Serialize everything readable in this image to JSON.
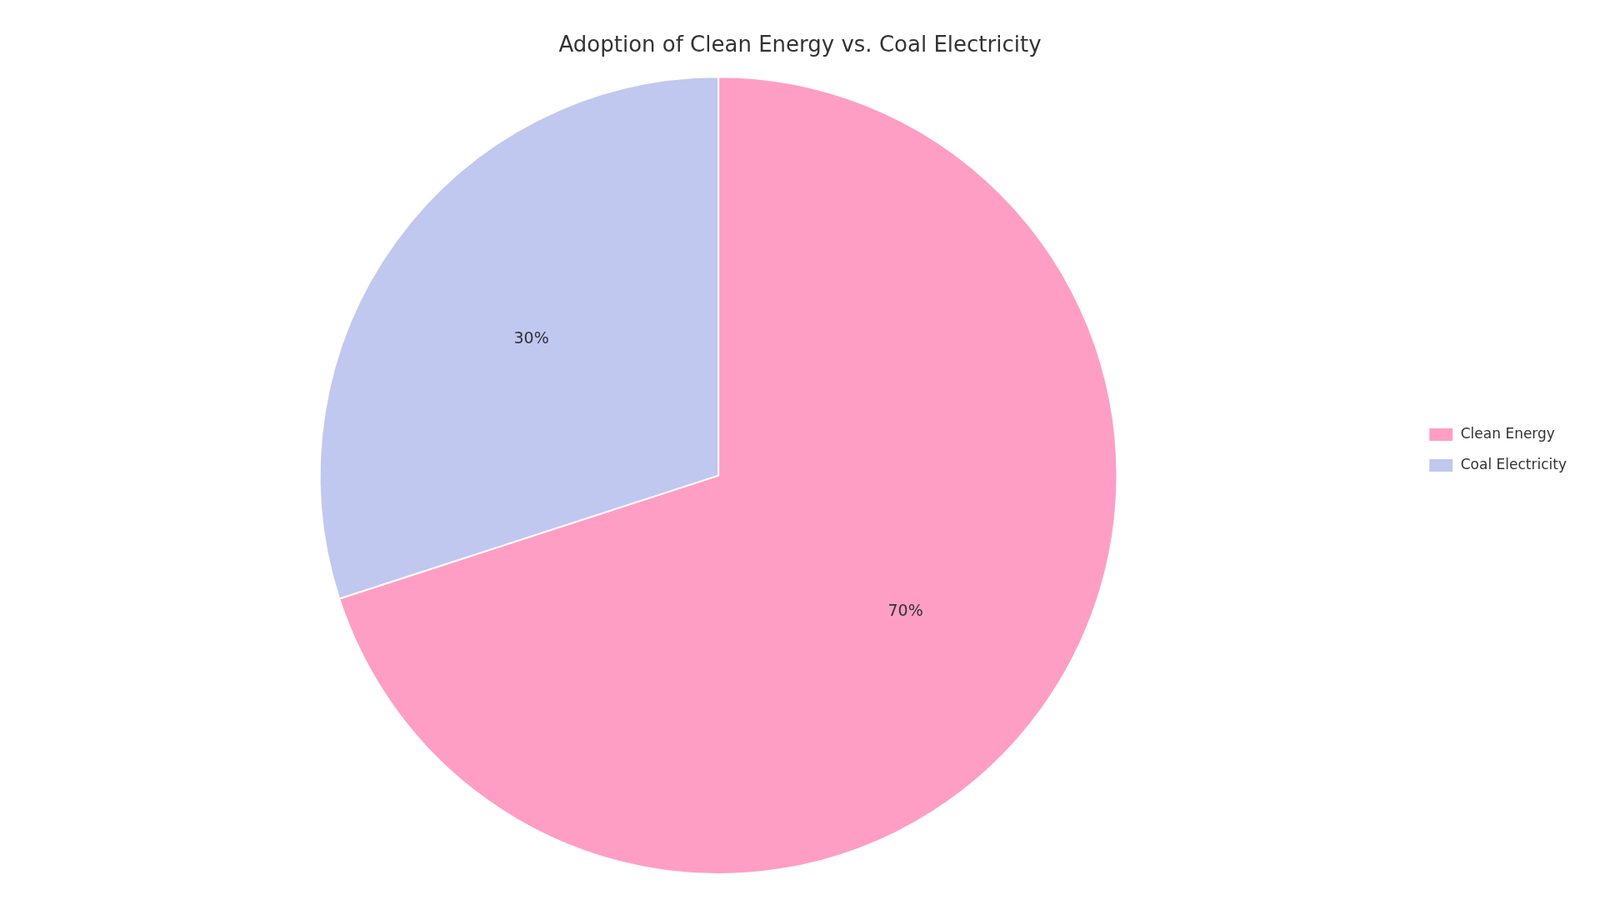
{
  "chart_data": {
    "type": "pie",
    "title": "Adoption of Clean Energy vs. Coal Electricity",
    "categories": [
      "Clean Energy",
      "Coal Electricity"
    ],
    "values": [
      70,
      30
    ],
    "value_labels": [
      "70%",
      "30%"
    ],
    "colors": [
      "#FF9EC4",
      "#C0C8F0"
    ],
    "data_labels": true,
    "legend": "right"
  }
}
